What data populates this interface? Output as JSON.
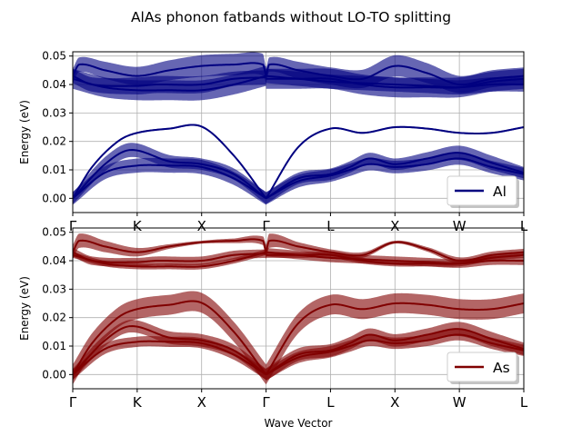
{
  "figure": {
    "title": "AlAs phonon fatbands without LO-TO splitting"
  },
  "chart_data": [
    {
      "type": "line",
      "panel": "top",
      "ylabel": "Energy (eV)",
      "ylim": [
        -0.005,
        0.0515
      ],
      "yticks": [
        0.0,
        0.01,
        0.02,
        0.03,
        0.04,
        0.05
      ],
      "ytick_labels": [
        "0.00",
        "0.01",
        "0.02",
        "0.03",
        "0.04",
        "0.05"
      ],
      "xticks": [
        0,
        1,
        2,
        3,
        4,
        5,
        6,
        7
      ],
      "xtick_labels": [
        "Γ",
        "K",
        "X",
        "Γ",
        "L",
        "X",
        "W",
        "L"
      ],
      "grid": true,
      "legend": {
        "label": "Al",
        "placement": "lower-right"
      },
      "color": "#000080",
      "series": [
        {
          "x": [
            0,
            0.3,
            0.7,
            1,
            1.5,
            2,
            2.5,
            3
          ],
          "values": [
            0.0,
            0.011,
            0.02,
            0.023,
            0.0245,
            0.0252,
            0.015,
            0.0
          ],
          "fat": [
            0.3,
            0.3,
            0.3,
            0.3,
            0.3,
            0.3,
            0.3,
            0.3
          ]
        },
        {
          "x": [
            0,
            0.5,
            0.9,
            1.5,
            2,
            2.5,
            3
          ],
          "values": [
            0.0,
            0.012,
            0.017,
            0.013,
            0.012,
            0.0085,
            0.0
          ],
          "fat": [
            2,
            2.5,
            2.5,
            2.2,
            2,
            2,
            2
          ]
        },
        {
          "x": [
            0,
            0.5,
            1,
            1.5,
            2,
            2.5,
            3
          ],
          "values": [
            0.0,
            0.009,
            0.0115,
            0.0115,
            0.011,
            0.007,
            0.0
          ],
          "fat": [
            2.3,
            2.3,
            2.5,
            2.5,
            2.5,
            2.3,
            2.3
          ]
        },
        {
          "x": [
            0,
            0.3,
            1,
            1.3,
            2,
            2.5,
            3
          ],
          "values": [
            0.043,
            0.04,
            0.0395,
            0.04,
            0.04,
            0.042,
            0.0425
          ],
          "fat": [
            2.5,
            2.5,
            3,
            3,
            3,
            2.5,
            2.5
          ]
        },
        {
          "x": [
            0,
            0.5,
            1,
            1.5,
            2,
            2.5,
            3
          ],
          "values": [
            0.042,
            0.039,
            0.038,
            0.038,
            0.038,
            0.04,
            0.043
          ],
          "fat": [
            3.5,
            3.5,
            3.5,
            3.5,
            3.5,
            3.5,
            3.5
          ]
        },
        {
          "x": [
            0,
            0.1,
            0.5,
            1,
            1.5,
            2,
            2.5,
            2.95,
            3
          ],
          "values": [
            0.043,
            0.047,
            0.045,
            0.043,
            0.045,
            0.0465,
            0.047,
            0.047,
            0.043
          ],
          "fat": [
            2.5,
            2.5,
            3,
            3.2,
            3.5,
            3.8,
            3.8,
            3.8,
            2.5
          ]
        },
        {
          "x": [
            3,
            3.5,
            4,
            4.5,
            5,
            5.5,
            6,
            6.5,
            7
          ],
          "values": [
            0.0,
            0.018,
            0.0245,
            0.023,
            0.025,
            0.0245,
            0.023,
            0.023,
            0.025
          ],
          "fat": [
            0.3,
            0.3,
            0.3,
            0.3,
            0.3,
            0.3,
            0.3,
            0.3,
            0.3
          ]
        },
        {
          "x": [
            3,
            3.5,
            4,
            4.3,
            4.6,
            5,
            5.5,
            6,
            6.5,
            7
          ],
          "values": [
            0.0,
            0.007,
            0.0085,
            0.011,
            0.014,
            0.012,
            0.014,
            0.016,
            0.0125,
            0.009
          ],
          "fat": [
            2,
            2,
            2,
            2,
            2,
            2,
            2.2,
            2.5,
            2.5,
            2
          ]
        },
        {
          "x": [
            3,
            3.5,
            4,
            4.3,
            4.6,
            5,
            5.5,
            6,
            6.5,
            7
          ],
          "values": [
            0.0,
            0.006,
            0.008,
            0.01,
            0.012,
            0.011,
            0.012,
            0.014,
            0.011,
            0.0085
          ],
          "fat": [
            2.2,
            2.2,
            2.2,
            2.2,
            2.2,
            2.2,
            2.2,
            2.2,
            2.2,
            2.2
          ]
        },
        {
          "x": [
            3,
            3.5,
            4,
            4.5,
            5,
            5.5,
            6,
            6.5,
            7
          ],
          "values": [
            0.043,
            0.042,
            0.041,
            0.0405,
            0.04,
            0.0395,
            0.039,
            0.04,
            0.04
          ],
          "fat": [
            2.5,
            2.5,
            2.5,
            2.5,
            2.5,
            2.5,
            2.5,
            2.5,
            2.5
          ]
        },
        {
          "x": [
            3,
            3.5,
            4,
            4.5,
            5,
            5.5,
            6,
            6.5,
            7
          ],
          "values": [
            0.042,
            0.042,
            0.042,
            0.04,
            0.039,
            0.039,
            0.039,
            0.041,
            0.042
          ],
          "fat": [
            3.5,
            3.5,
            3.5,
            3.5,
            3.5,
            3.5,
            3.5,
            3.5,
            3.5
          ]
        },
        {
          "x": [
            3,
            3.05,
            3.5,
            4,
            4.5,
            5,
            5.5,
            6,
            6.5,
            7
          ],
          "values": [
            0.043,
            0.047,
            0.045,
            0.043,
            0.042,
            0.0465,
            0.044,
            0.04,
            0.042,
            0.043
          ],
          "fat": [
            2.5,
            2.5,
            3,
            3,
            3.2,
            3.8,
            3.5,
            3,
            3,
            3
          ]
        }
      ]
    },
    {
      "type": "line",
      "panel": "bottom",
      "ylabel": "Energy (eV)",
      "xlabel": "Wave Vector",
      "ylim": [
        -0.005,
        0.0515
      ],
      "yticks": [
        0.0,
        0.01,
        0.02,
        0.03,
        0.04,
        0.05
      ],
      "ytick_labels": [
        "0.00",
        "0.01",
        "0.02",
        "0.03",
        "0.04",
        "0.05"
      ],
      "xticks": [
        0,
        1,
        2,
        3,
        4,
        5,
        6,
        7
      ],
      "xtick_labels": [
        "Γ",
        "K",
        "X",
        "Γ",
        "L",
        "X",
        "W",
        "L"
      ],
      "grid": true,
      "legend": {
        "label": "As",
        "placement": "lower-right"
      },
      "color": "#800000",
      "series": [
        {
          "x": [
            0,
            0.3,
            0.7,
            1,
            1.5,
            2,
            2.5,
            3
          ],
          "values": [
            0.0,
            0.011,
            0.02,
            0.023,
            0.0245,
            0.0252,
            0.015,
            0.0
          ],
          "fat": [
            3.5,
            3.5,
            3.5,
            3.5,
            3.5,
            3.5,
            3.5,
            3.5
          ]
        },
        {
          "x": [
            0,
            0.5,
            0.9,
            1.5,
            2,
            2.5,
            3
          ],
          "values": [
            0.0,
            0.012,
            0.017,
            0.013,
            0.012,
            0.0085,
            0.0
          ],
          "fat": [
            2,
            2,
            2.2,
            2.2,
            2.2,
            2,
            2
          ]
        },
        {
          "x": [
            0,
            0.5,
            1,
            1.5,
            2,
            2.5,
            3
          ],
          "values": [
            0.0,
            0.009,
            0.0115,
            0.0115,
            0.011,
            0.007,
            0.0
          ],
          "fat": [
            1.8,
            1.8,
            1.8,
            1.8,
            1.8,
            1.8,
            1.8
          ]
        },
        {
          "x": [
            0,
            0.3,
            1,
            1.3,
            2,
            2.5,
            3
          ],
          "values": [
            0.043,
            0.04,
            0.0395,
            0.04,
            0.04,
            0.042,
            0.0425
          ],
          "fat": [
            1.5,
            1.5,
            1.5,
            1.5,
            1.5,
            1.5,
            1.5
          ]
        },
        {
          "x": [
            0,
            0.5,
            1,
            1.5,
            2,
            2.5,
            3
          ],
          "values": [
            0.042,
            0.039,
            0.038,
            0.038,
            0.038,
            0.04,
            0.043
          ],
          "fat": [
            1,
            1,
            1,
            1,
            1,
            1,
            1
          ]
        },
        {
          "x": [
            0,
            0.1,
            0.5,
            1,
            1.5,
            2,
            2.5,
            2.95,
            3
          ],
          "values": [
            0.043,
            0.047,
            0.045,
            0.043,
            0.045,
            0.0465,
            0.047,
            0.047,
            0.043
          ],
          "fat": [
            2.5,
            2.5,
            2,
            1.5,
            0.8,
            0.5,
            0.8,
            1.5,
            2.5
          ]
        },
        {
          "x": [
            3,
            3.5,
            4,
            4.5,
            5,
            5.5,
            6,
            6.5,
            7
          ],
          "values": [
            0.0,
            0.018,
            0.0245,
            0.023,
            0.025,
            0.0245,
            0.023,
            0.023,
            0.025
          ],
          "fat": [
            3.5,
            3.5,
            3.5,
            3.5,
            3.5,
            3.5,
            3.5,
            3.5,
            3.5
          ]
        },
        {
          "x": [
            3,
            3.5,
            4,
            4.3,
            4.6,
            5,
            5.5,
            6,
            6.5,
            7
          ],
          "values": [
            0.0,
            0.007,
            0.0085,
            0.011,
            0.014,
            0.012,
            0.014,
            0.016,
            0.0125,
            0.009
          ],
          "fat": [
            2.2,
            2.2,
            2.2,
            2.2,
            2.2,
            2.2,
            2.2,
            2.5,
            2.5,
            2.2
          ]
        },
        {
          "x": [
            3,
            3.5,
            4,
            4.3,
            4.6,
            5,
            5.5,
            6,
            6.5,
            7
          ],
          "values": [
            0.0,
            0.006,
            0.008,
            0.01,
            0.012,
            0.011,
            0.012,
            0.014,
            0.011,
            0.0085
          ],
          "fat": [
            2,
            2,
            2,
            2,
            2,
            2,
            2,
            2,
            2,
            2
          ]
        },
        {
          "x": [
            3,
            3.5,
            4,
            4.5,
            5,
            5.5,
            6,
            6.5,
            7
          ],
          "values": [
            0.043,
            0.042,
            0.041,
            0.0405,
            0.04,
            0.0395,
            0.039,
            0.04,
            0.04
          ],
          "fat": [
            1.5,
            1.5,
            1.5,
            1.5,
            1.5,
            1.5,
            1.5,
            1.5,
            1.5
          ]
        },
        {
          "x": [
            3,
            3.5,
            4,
            4.5,
            5,
            5.5,
            6,
            6.5,
            7
          ],
          "values": [
            0.042,
            0.042,
            0.042,
            0.04,
            0.039,
            0.039,
            0.039,
            0.041,
            0.042
          ],
          "fat": [
            1,
            1,
            1,
            1,
            1,
            1,
            1,
            1,
            1
          ]
        },
        {
          "x": [
            3,
            3.05,
            3.5,
            4,
            4.5,
            5,
            5.5,
            6,
            6.5,
            7
          ],
          "values": [
            0.043,
            0.047,
            0.045,
            0.043,
            0.042,
            0.0465,
            0.044,
            0.04,
            0.042,
            0.043
          ],
          "fat": [
            2.5,
            2.5,
            1.5,
            1,
            1,
            0.5,
            0.8,
            1.2,
            1.2,
            1.2
          ]
        }
      ]
    }
  ]
}
